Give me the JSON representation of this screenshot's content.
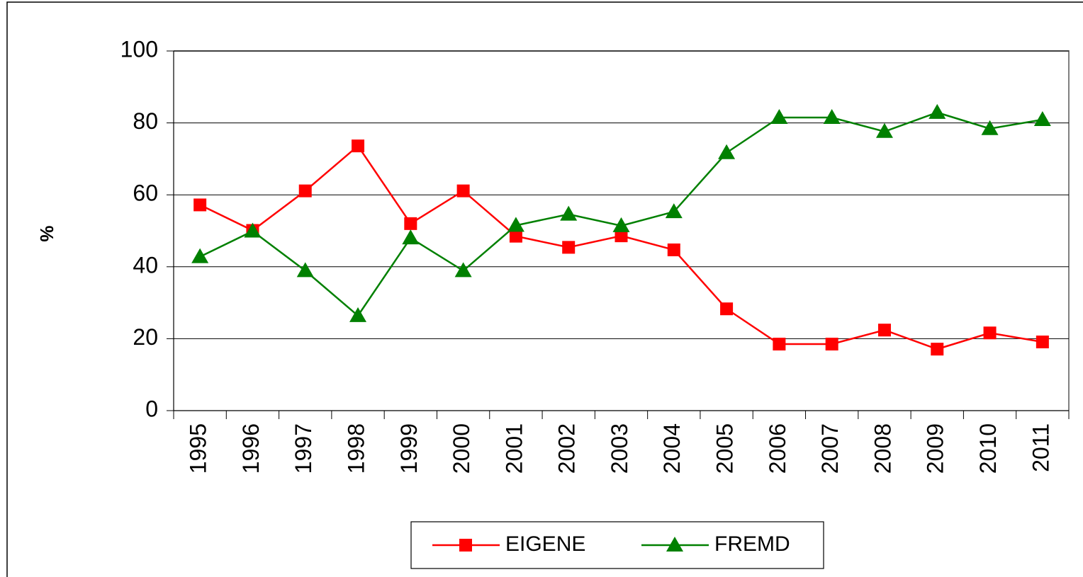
{
  "chart_data": {
    "type": "line",
    "y_label": "%",
    "categories": [
      "1995",
      "1996",
      "1997",
      "1998",
      "1999",
      "2000",
      "2001",
      "2002",
      "2003",
      "2004",
      "2005",
      "2006",
      "2007",
      "2008",
      "2009",
      "2010",
      "2011"
    ],
    "series": [
      {
        "name": "EIGENE",
        "color": "#ff0000",
        "marker": "square",
        "values": [
          57.2,
          50.1,
          61.1,
          73.6,
          52,
          61.1,
          48.5,
          45.4,
          48.6,
          44.7,
          28.3,
          18.5,
          18.5,
          22.4,
          17.1,
          21.6,
          19.1
        ]
      },
      {
        "name": "FREMD",
        "color": "#008000",
        "marker": "triangle",
        "values": [
          42.8,
          49.9,
          38.9,
          26.4,
          48,
          38.9,
          51.5,
          54.6,
          51.4,
          55.3,
          71.7,
          81.5,
          81.5,
          77.6,
          82.9,
          78.4,
          80.9
        ]
      }
    ],
    "ylim": [
      0,
      100
    ],
    "yticks": [
      0,
      20,
      40,
      60,
      80,
      100
    ],
    "grid": true,
    "legend": "bottom"
  }
}
